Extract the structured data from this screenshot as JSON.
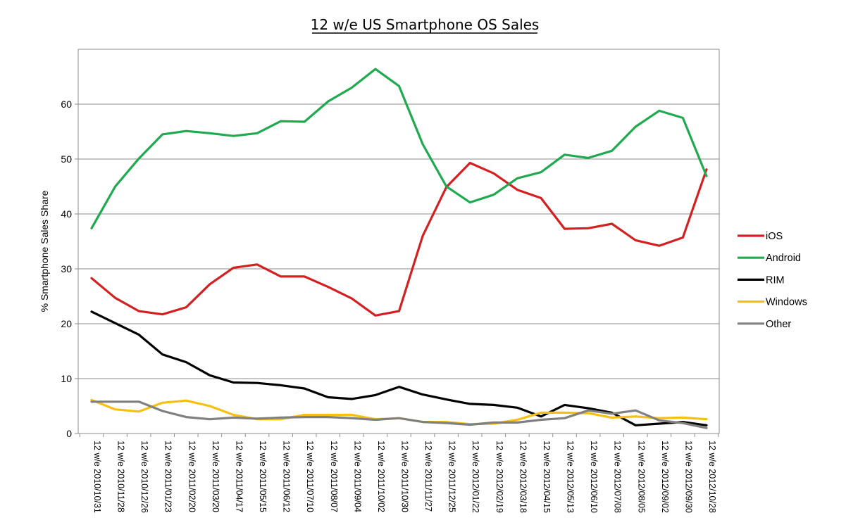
{
  "chart_data": {
    "type": "line",
    "title": "12 w/e US Smartphone OS Sales",
    "xlabel": "",
    "ylabel": "% Smartphone Sales Share",
    "ylim": [
      0,
      70
    ],
    "yticks": [
      0,
      10,
      20,
      30,
      40,
      50,
      60
    ],
    "grid": true,
    "legend_position": "right",
    "categories": [
      "12 w/e 2010/10/31",
      "12 w/e 2010/11/28",
      "12 w/e 2010/12/26",
      "12 w/e 2011/01/23",
      "12 w/e 2011/02/20",
      "12 w/e 2011/03/20",
      "12 w/e 2011/04/17",
      "12 w/e 2011/05/15",
      "12 w/e 2011/06/12",
      "12 w/e 2011/07/10",
      "12 w/e 2011/08/07",
      "12 w/e 2011/09/04",
      "12 w/e 2011/10/02",
      "12 w/e 2011/10/30",
      "12 w/e 2011/11/27",
      "12 w/e 2011/12/25",
      "12 w/e 2012/01/22",
      "12 w/e 2012/02/19",
      "12 w/e 2012/03/18",
      "12 w/e 2012/04/15",
      "12 w/e 2012/05/13",
      "12 w/e 2012/06/10",
      "12 w/e 2012/07/08",
      "12 w/e 2012/08/05",
      "12 w/e 2012/09/02",
      "12 w/e 2012/09/30",
      "12 w/e 2012/10/28"
    ],
    "series": [
      {
        "name": "iOS",
        "color": "#d42020",
        "values": [
          28.3,
          24.7,
          22.3,
          21.7,
          23.0,
          27.2,
          30.2,
          30.8,
          28.6,
          28.6,
          26.7,
          24.6,
          21.5,
          22.3,
          36.0,
          44.9,
          49.3,
          47.4,
          44.4,
          42.9,
          37.3,
          37.4,
          38.2,
          35.2,
          34.2,
          35.7,
          48.1
        ]
      },
      {
        "name": "Android",
        "color": "#1faa50",
        "values": [
          37.4,
          45.0,
          50.1,
          54.5,
          55.1,
          54.7,
          54.2,
          54.7,
          56.9,
          56.8,
          60.5,
          63.0,
          66.4,
          63.3,
          52.7,
          45.0,
          42.1,
          43.5,
          46.5,
          47.6,
          50.8,
          50.2,
          51.5,
          55.9,
          58.8,
          57.5,
          46.9
        ]
      },
      {
        "name": "RIM",
        "color": "#000000",
        "values": [
          22.2,
          20.1,
          18.0,
          14.4,
          13.0,
          10.6,
          9.3,
          9.2,
          8.8,
          8.2,
          6.6,
          6.3,
          7.0,
          8.5,
          7.1,
          6.2,
          5.4,
          5.2,
          4.7,
          3.1,
          5.2,
          4.6,
          3.8,
          1.5,
          1.8,
          2.1,
          1.5
        ]
      },
      {
        "name": "Windows",
        "color": "#f7c010",
        "values": [
          6.1,
          4.4,
          4.0,
          5.6,
          6.0,
          5.0,
          3.4,
          2.6,
          2.6,
          3.4,
          3.4,
          3.4,
          2.6,
          2.8,
          2.1,
          2.1,
          1.7,
          1.8,
          2.5,
          3.8,
          3.8,
          3.7,
          2.9,
          3.1,
          2.8,
          2.9,
          2.6
        ]
      },
      {
        "name": "Other",
        "color": "#808080",
        "values": [
          5.8,
          5.8,
          5.8,
          4.1,
          3.0,
          2.6,
          2.9,
          2.7,
          2.9,
          3.0,
          3.0,
          2.8,
          2.5,
          2.8,
          2.1,
          1.9,
          1.6,
          2.0,
          2.0,
          2.5,
          2.8,
          4.2,
          3.6,
          4.2,
          2.4,
          1.9,
          1.0
        ]
      }
    ]
  }
}
